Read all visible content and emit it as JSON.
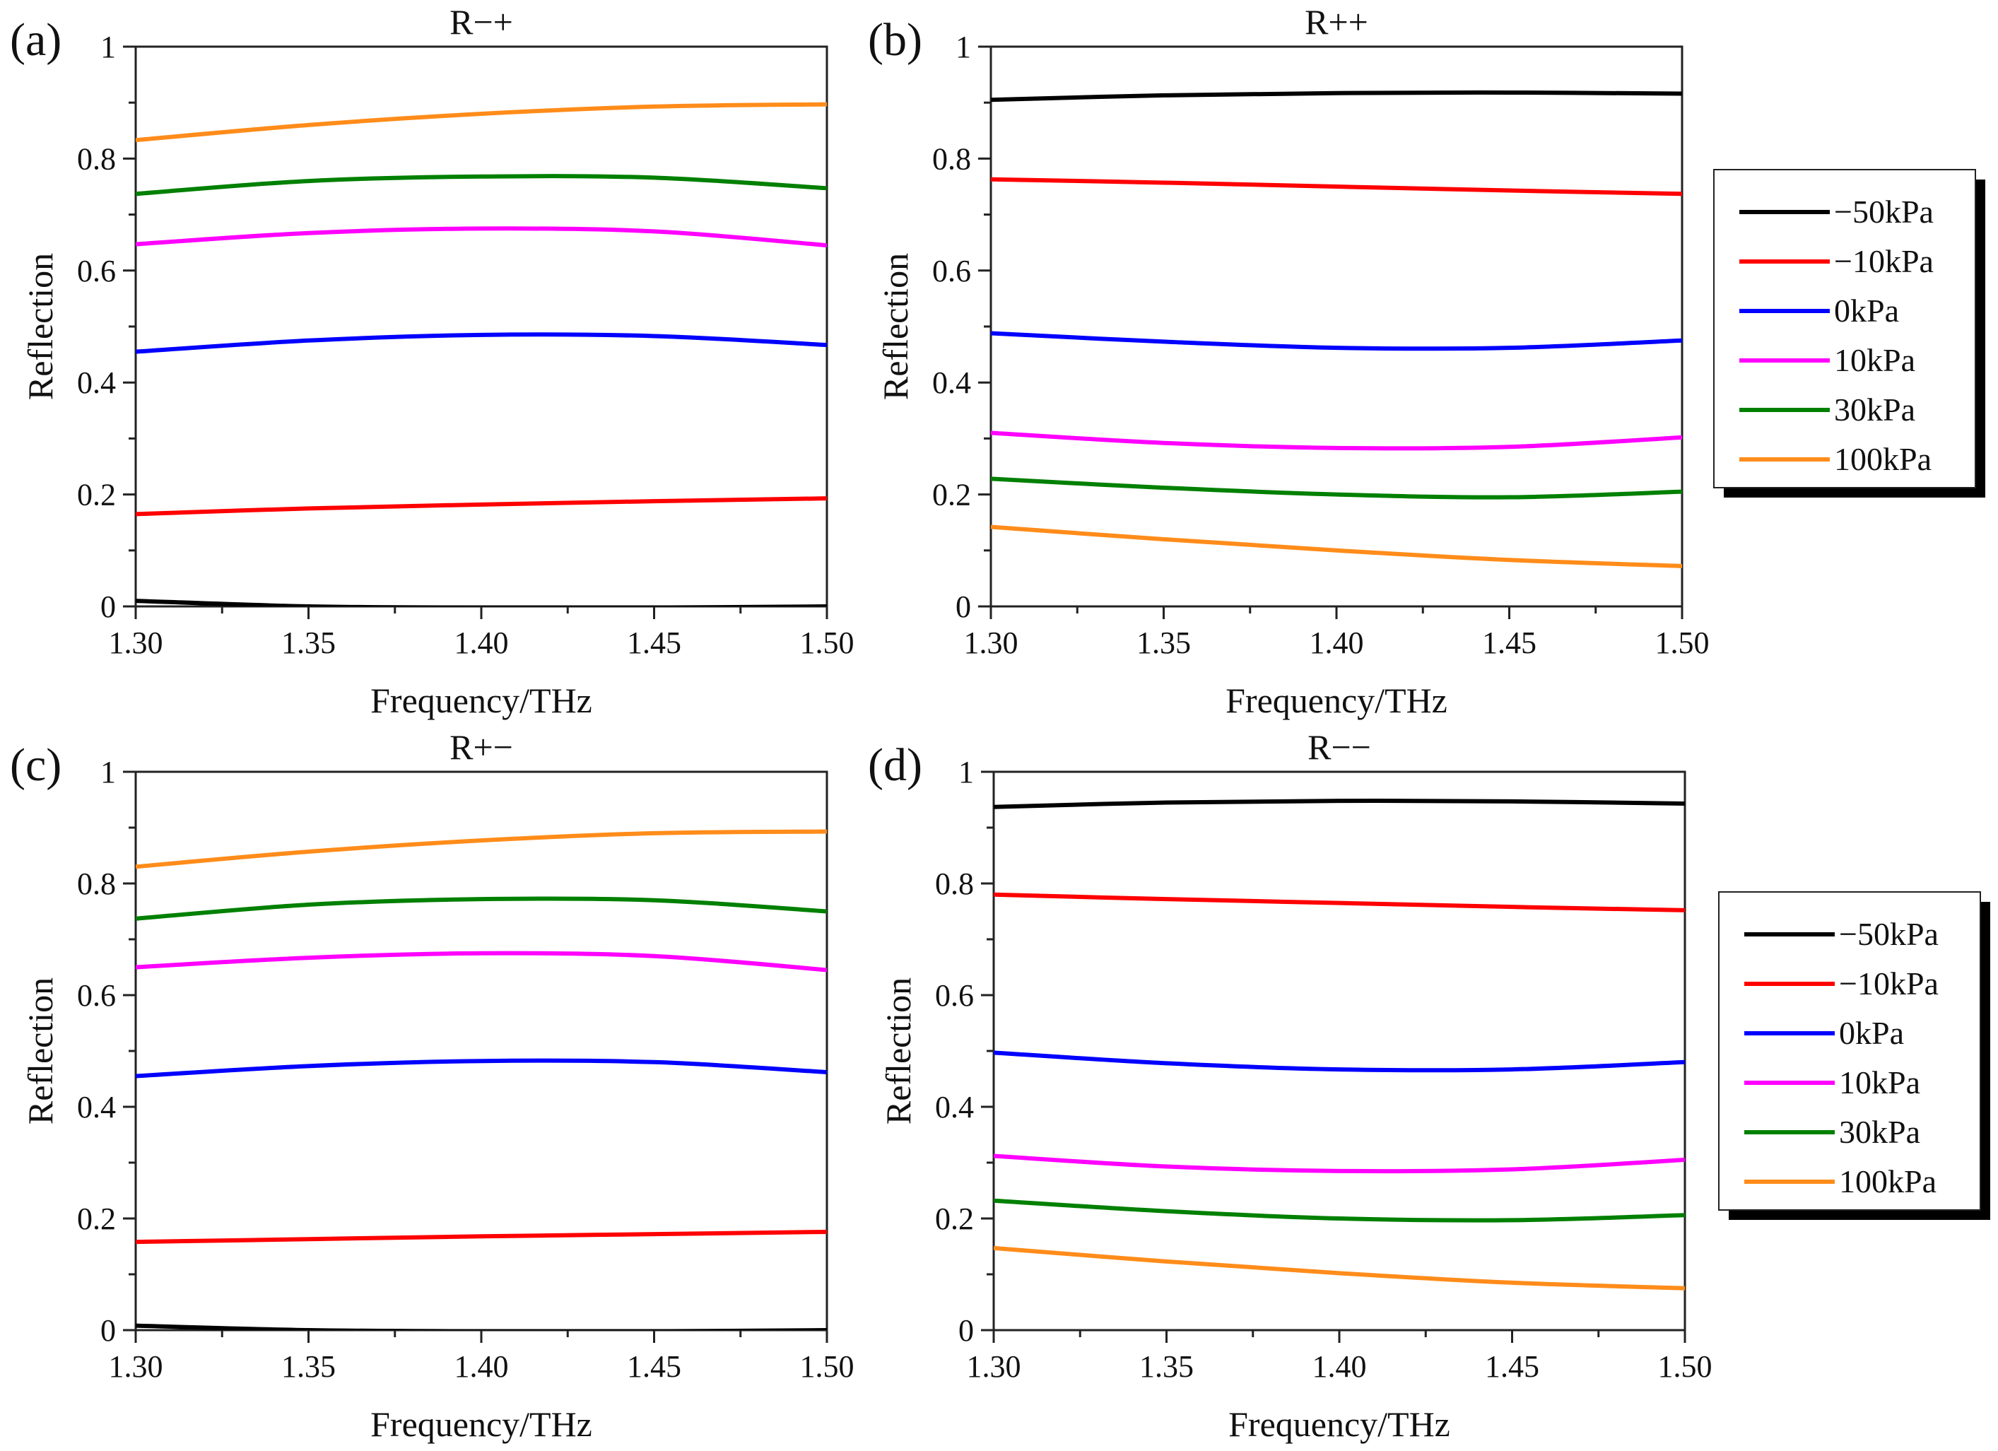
{
  "chart_data": [
    {
      "panel": "(a)",
      "type": "line",
      "title": "R−+",
      "xlabel": "Frequency/THz",
      "ylabel": "Reflection",
      "xlim": [
        1.3,
        1.5
      ],
      "ylim": [
        0,
        1
      ],
      "xticks": [
        "1.30",
        "1.35",
        "1.40",
        "1.45",
        "1.50"
      ],
      "yticks": [
        "0",
        "0.2",
        "0.4",
        "0.6",
        "0.8",
        "1"
      ],
      "x": [
        1.3,
        1.35,
        1.4,
        1.45,
        1.5
      ],
      "series": [
        {
          "name": "−50kPa",
          "color": "#000000",
          "values": [
            0.01,
            0.0,
            -0.002,
            -0.002,
            0.0
          ]
        },
        {
          "name": "−10kPa",
          "color": "#ff0000",
          "values": [
            0.165,
            0.175,
            0.182,
            0.188,
            0.193
          ]
        },
        {
          "name": "0kPa",
          "color": "#0000ff",
          "values": [
            0.455,
            0.475,
            0.485,
            0.483,
            0.467
          ]
        },
        {
          "name": "10kPa",
          "color": "#ff00ff",
          "values": [
            0.647,
            0.667,
            0.675,
            0.67,
            0.645
          ]
        },
        {
          "name": "30kPa",
          "color": "#008000",
          "values": [
            0.737,
            0.76,
            0.768,
            0.766,
            0.747
          ]
        },
        {
          "name": "100kPa",
          "color": "#ff8c1a",
          "values": [
            0.833,
            0.86,
            0.88,
            0.893,
            0.897
          ]
        }
      ]
    },
    {
      "panel": "(b)",
      "type": "line",
      "title": "R++",
      "xlabel": "Frequency/THz",
      "ylabel": "Reflection",
      "xlim": [
        1.3,
        1.5
      ],
      "ylim": [
        0,
        1
      ],
      "xticks": [
        "1.30",
        "1.35",
        "1.40",
        "1.45",
        "1.50"
      ],
      "yticks": [
        "0",
        "0.2",
        "0.4",
        "0.6",
        "0.8",
        "1"
      ],
      "x": [
        1.3,
        1.35,
        1.4,
        1.45,
        1.5
      ],
      "series": [
        {
          "name": "−50kPa",
          "color": "#000000",
          "values": [
            0.905,
            0.913,
            0.917,
            0.918,
            0.916
          ]
        },
        {
          "name": "−10kPa",
          "color": "#ff0000",
          "values": [
            0.763,
            0.757,
            0.75,
            0.743,
            0.737
          ]
        },
        {
          "name": "0kPa",
          "color": "#0000ff",
          "values": [
            0.488,
            0.473,
            0.462,
            0.462,
            0.475
          ]
        },
        {
          "name": "10kPa",
          "color": "#ff00ff",
          "values": [
            0.31,
            0.292,
            0.283,
            0.285,
            0.302
          ]
        },
        {
          "name": "30kPa",
          "color": "#008000",
          "values": [
            0.228,
            0.212,
            0.2,
            0.195,
            0.205
          ]
        },
        {
          "name": "100kPa",
          "color": "#ff8c1a",
          "values": [
            0.142,
            0.12,
            0.1,
            0.083,
            0.072
          ]
        }
      ]
    },
    {
      "panel": "(c)",
      "type": "line",
      "title": "R+−",
      "xlabel": "Frequency/THz",
      "ylabel": "Reflection",
      "xlim": [
        1.3,
        1.5
      ],
      "ylim": [
        0,
        1
      ],
      "xticks": [
        "1.30",
        "1.35",
        "1.40",
        "1.45",
        "1.50"
      ],
      "yticks": [
        "0",
        "0.2",
        "0.4",
        "0.6",
        "0.8",
        "1"
      ],
      "x": [
        1.3,
        1.35,
        1.4,
        1.45,
        1.5
      ],
      "series": [
        {
          "name": "−50kPa",
          "color": "#000000",
          "values": [
            0.008,
            0.0,
            -0.002,
            -0.002,
            0.0
          ]
        },
        {
          "name": "−10kPa",
          "color": "#ff0000",
          "values": [
            0.158,
            0.163,
            0.168,
            0.172,
            0.176
          ]
        },
        {
          "name": "0kPa",
          "color": "#0000ff",
          "values": [
            0.455,
            0.473,
            0.482,
            0.48,
            0.462
          ]
        },
        {
          "name": "10kPa",
          "color": "#ff00ff",
          "values": [
            0.65,
            0.667,
            0.675,
            0.67,
            0.645
          ]
        },
        {
          "name": "30kPa",
          "color": "#008000",
          "values": [
            0.737,
            0.762,
            0.772,
            0.77,
            0.75
          ]
        },
        {
          "name": "100kPa",
          "color": "#ff8c1a",
          "values": [
            0.83,
            0.857,
            0.877,
            0.89,
            0.893
          ]
        }
      ]
    },
    {
      "panel": "(d)",
      "type": "line",
      "title": "R−−",
      "xlabel": "Frequency/THz",
      "ylabel": "Reflection",
      "xlim": [
        1.3,
        1.5
      ],
      "ylim": [
        0,
        1
      ],
      "xticks": [
        "1.30",
        "1.35",
        "1.40",
        "1.45",
        "1.50"
      ],
      "yticks": [
        "0",
        "0.2",
        "0.4",
        "0.6",
        "0.8",
        "1"
      ],
      "x": [
        1.3,
        1.35,
        1.4,
        1.45,
        1.5
      ],
      "series": [
        {
          "name": "−50kPa",
          "color": "#000000",
          "values": [
            0.937,
            0.945,
            0.948,
            0.947,
            0.943
          ]
        },
        {
          "name": "−10kPa",
          "color": "#ff0000",
          "values": [
            0.78,
            0.772,
            0.765,
            0.758,
            0.752
          ]
        },
        {
          "name": "0kPa",
          "color": "#0000ff",
          "values": [
            0.497,
            0.478,
            0.467,
            0.467,
            0.48
          ]
        },
        {
          "name": "10kPa",
          "color": "#ff00ff",
          "values": [
            0.312,
            0.293,
            0.285,
            0.288,
            0.305
          ]
        },
        {
          "name": "30kPa",
          "color": "#008000",
          "values": [
            0.232,
            0.213,
            0.2,
            0.197,
            0.206
          ]
        },
        {
          "name": "100kPa",
          "color": "#ff8c1a",
          "values": [
            0.147,
            0.123,
            0.102,
            0.085,
            0.075
          ]
        }
      ]
    }
  ],
  "legend": [
    {
      "label": "−50kPa",
      "color": "#000000"
    },
    {
      "label": "−10kPa",
      "color": "#ff0000"
    },
    {
      "label": "0kPa",
      "color": "#0000ff"
    },
    {
      "label": "10kPa",
      "color": "#ff00ff"
    },
    {
      "label": "30kPa",
      "color": "#008000"
    },
    {
      "label": "100kPa",
      "color": "#ff8c1a"
    }
  ]
}
